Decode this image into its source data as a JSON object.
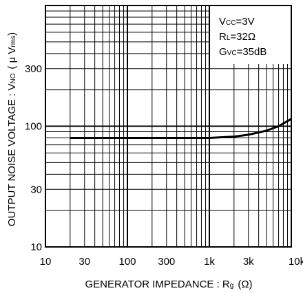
{
  "chart_data": {
    "type": "line",
    "xlabel": "GENERATOR IMPEDANCE : R",
    "xlabel_sub": "g",
    "xlabel_unit": "(Ω)",
    "ylabel": "OUTPUT NOISE VOLTAGE : V",
    "ylabel_sub": "NO",
    "ylabel_unit": "( μ V",
    "ylabel_unit_sub": "rms",
    "ylabel_close": ")",
    "x_scale": "log",
    "y_scale": "log",
    "xlim": [
      10,
      10000
    ],
    "ylim": [
      10,
      1000
    ],
    "x_ticks": [
      {
        "value": 10,
        "label": "10"
      },
      {
        "value": 30,
        "label": "30"
      },
      {
        "value": 100,
        "label": "100"
      },
      {
        "value": 300,
        "label": "300"
      },
      {
        "value": 1000,
        "label": "1k"
      },
      {
        "value": 3000,
        "label": "3k"
      },
      {
        "value": 10000,
        "label": "10k"
      }
    ],
    "y_ticks": [
      {
        "value": 10,
        "label": "10"
      },
      {
        "value": 30,
        "label": "30"
      },
      {
        "value": 100,
        "label": "100"
      },
      {
        "value": 300,
        "label": "300"
      }
    ],
    "conditions": [
      {
        "main": "V",
        "sub": "CC",
        "rest": "=3V"
      },
      {
        "main": "R",
        "sub": "L",
        "rest": "=32Ω"
      },
      {
        "main": "G",
        "sub": "VC",
        "rest": "=35dB"
      }
    ],
    "grid": true,
    "series": [
      {
        "x": [
          20,
          30,
          50,
          100,
          200,
          300,
          500,
          1000,
          2000,
          3000,
          5000,
          7000,
          10000
        ],
        "y": [
          80,
          80,
          80,
          80,
          80,
          80,
          80,
          80,
          82,
          85,
          92,
          100,
          115
        ]
      }
    ]
  }
}
